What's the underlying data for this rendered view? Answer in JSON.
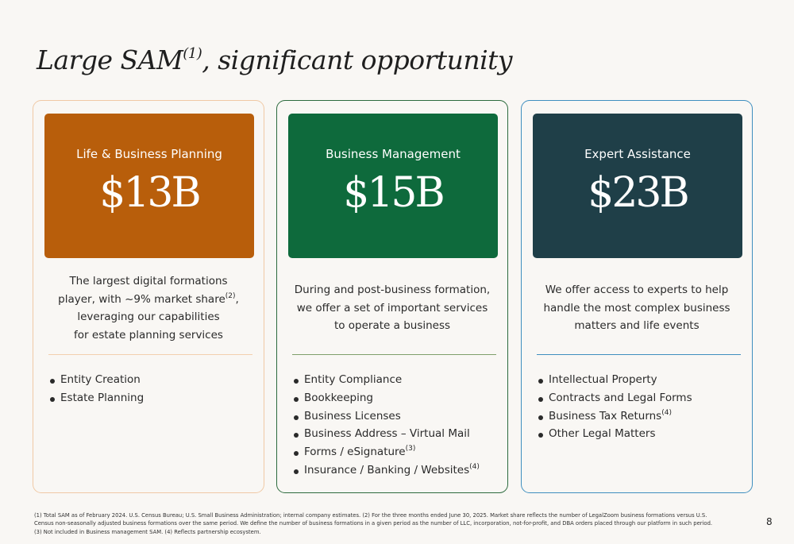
{
  "title": {
    "main": "Large SAM",
    "sup": "(1)",
    "rest": ", significant opportunity"
  },
  "cards": [
    {
      "category": "Life & Business Planning",
      "amount": "$13B",
      "description": [
        {
          "text": "The largest digital formations"
        },
        {
          "text": "player, with ~9% market share",
          "sup": "(2)",
          "after": ","
        },
        {
          "text": "leveraging our capabilities"
        },
        {
          "text": "for estate planning services"
        }
      ],
      "bullets": [
        {
          "text": "Entity Creation"
        },
        {
          "text": "Estate Planning"
        }
      ]
    },
    {
      "category": "Business Management",
      "amount": "$15B",
      "description": [
        {
          "text": "During and post-business formation,"
        },
        {
          "text": "we offer a set of important services"
        },
        {
          "text": "to operate a business"
        }
      ],
      "bullets": [
        {
          "text": "Entity Compliance"
        },
        {
          "text": "Bookkeeping"
        },
        {
          "text": "Business Licenses"
        },
        {
          "text": "Business Address – Virtual Mail"
        },
        {
          "text": "Forms / eSignature",
          "sup": "(3)"
        },
        {
          "text": "Insurance / Banking / Websites",
          "sup": "(4)"
        }
      ]
    },
    {
      "category": "Expert Assistance",
      "amount": "$23B",
      "description": [
        {
          "text": "We offer access to experts to help"
        },
        {
          "text": "handle the most complex business"
        },
        {
          "text": "matters and life events"
        }
      ],
      "bullets": [
        {
          "text": "Intellectual Property"
        },
        {
          "text": "Contracts and Legal Forms"
        },
        {
          "text": "Business Tax Returns",
          "sup": "(4)"
        },
        {
          "text": "Other Legal Matters"
        }
      ]
    }
  ],
  "footnote": [
    "(1) Total SAM as of February 2024. U.S. Census Bureau; U.S. Small Business Administration; internal company estimates. (2) For the three months ended June 30, 2025. Market share reflects the number of LegalZoom business formations versus U.S.",
    "Census non-seasonally adjusted business formations over the same period. We define the number of business formations in a given period as the number of LLC, incorporation, not-for-profit, and DBA orders placed through our platform in such period.",
    "(3) Not included in Business management SAM. (4) Reflects partnership ecosystem."
  ],
  "page_number": "8",
  "colors": {
    "life_business_planning": "#b85e0b",
    "business_management": "#0e6a3c",
    "expert_assistance": "#1f3f48",
    "background": "#f9f7f4"
  }
}
